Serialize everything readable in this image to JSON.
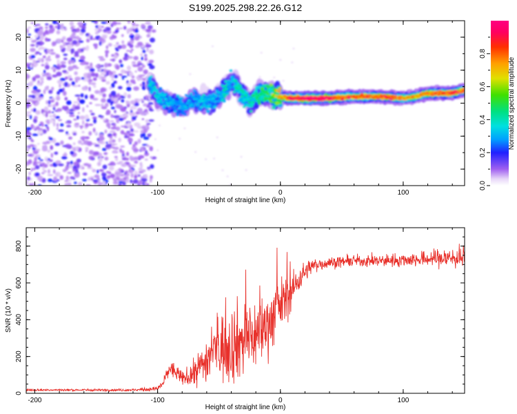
{
  "chart_data": [
    {
      "type": "heatmap",
      "title": "S199.2025.298.22.26.G12",
      "xlabel": "Height of straight line (km)",
      "ylabel": "Frequency (Hz)",
      "xlim": [
        -207,
        150
      ],
      "ylim": [
        -25,
        25
      ],
      "xticks": [
        -200,
        -100,
        0,
        100
      ],
      "yticks": [
        -20,
        -10,
        0,
        10,
        20
      ],
      "colorbar": {
        "label": "Normalized spectral amplitude",
        "range": [
          0,
          1
        ],
        "ticks": [
          0.0,
          0.2,
          0.4,
          0.6,
          0.8
        ]
      },
      "noise_region_x": [
        -207,
        -103
      ],
      "ridge": {
        "x": [
          -107,
          -100,
          -90,
          -80,
          -70,
          -60,
          -50,
          -45,
          -40,
          -35,
          -30,
          -25,
          -20,
          -15,
          -10,
          -5,
          0,
          5,
          10,
          20,
          30,
          40,
          50,
          60,
          70,
          80,
          90,
          100,
          110,
          120,
          130,
          140,
          150
        ],
        "freq": [
          7,
          2,
          0,
          -1,
          1,
          0,
          2,
          4,
          7,
          5,
          2,
          0,
          2,
          3,
          3,
          2,
          2,
          1.5,
          1.5,
          1.5,
          1.5,
          1.5,
          1.8,
          2,
          2,
          2,
          1.8,
          1.5,
          2,
          3,
          3,
          3,
          4
        ],
        "amp": [
          0.35,
          0.35,
          0.3,
          0.3,
          0.3,
          0.35,
          0.3,
          0.4,
          0.3,
          0.4,
          0.4,
          0.4,
          0.45,
          0.5,
          0.5,
          0.6,
          0.7,
          0.8,
          0.9,
          1.0,
          1.0,
          0.95,
          0.8,
          0.85,
          0.8,
          0.8,
          0.85,
          0.75,
          0.7,
          0.8,
          0.8,
          0.85,
          0.8
        ]
      }
    },
    {
      "type": "line",
      "xlabel": "Height of straight line (km)",
      "ylabel": "SNR (10 * v/v)",
      "xlim": [
        -207,
        150
      ],
      "ylim": [
        0,
        900
      ],
      "xticks": [
        -200,
        -100,
        0,
        100
      ],
      "yticks": [
        0,
        200,
        400,
        600,
        800
      ],
      "color": "#e8302a",
      "series": [
        {
          "name": "SNR",
          "x": [
            -207,
            -180,
            -150,
            -120,
            -100,
            -95,
            -90,
            -85,
            -80,
            -75,
            -70,
            -65,
            -60,
            -55,
            -50,
            -45,
            -40,
            -35,
            -30,
            -25,
            -20,
            -15,
            -10,
            -5,
            0,
            5,
            10,
            15,
            20,
            25,
            30,
            40,
            50,
            60,
            80,
            100,
            120,
            130,
            140,
            150
          ],
          "mean": [
            18,
            18,
            18,
            18,
            25,
            60,
            140,
            110,
            80,
            90,
            110,
            150,
            180,
            220,
            240,
            260,
            270,
            280,
            290,
            300,
            320,
            350,
            380,
            430,
            480,
            520,
            560,
            620,
            660,
            690,
            700,
            710,
            715,
            720,
            720,
            725,
            730,
            735,
            735,
            740
          ],
          "noise": [
            5,
            5,
            5,
            6,
            10,
            25,
            40,
            35,
            30,
            45,
            60,
            80,
            110,
            130,
            150,
            170,
            180,
            180,
            170,
            160,
            160,
            150,
            140,
            140,
            120,
            100,
            80,
            60,
            45,
            35,
            30,
            25,
            25,
            25,
            28,
            30,
            35,
            45,
            50,
            50
          ]
        }
      ]
    }
  ]
}
